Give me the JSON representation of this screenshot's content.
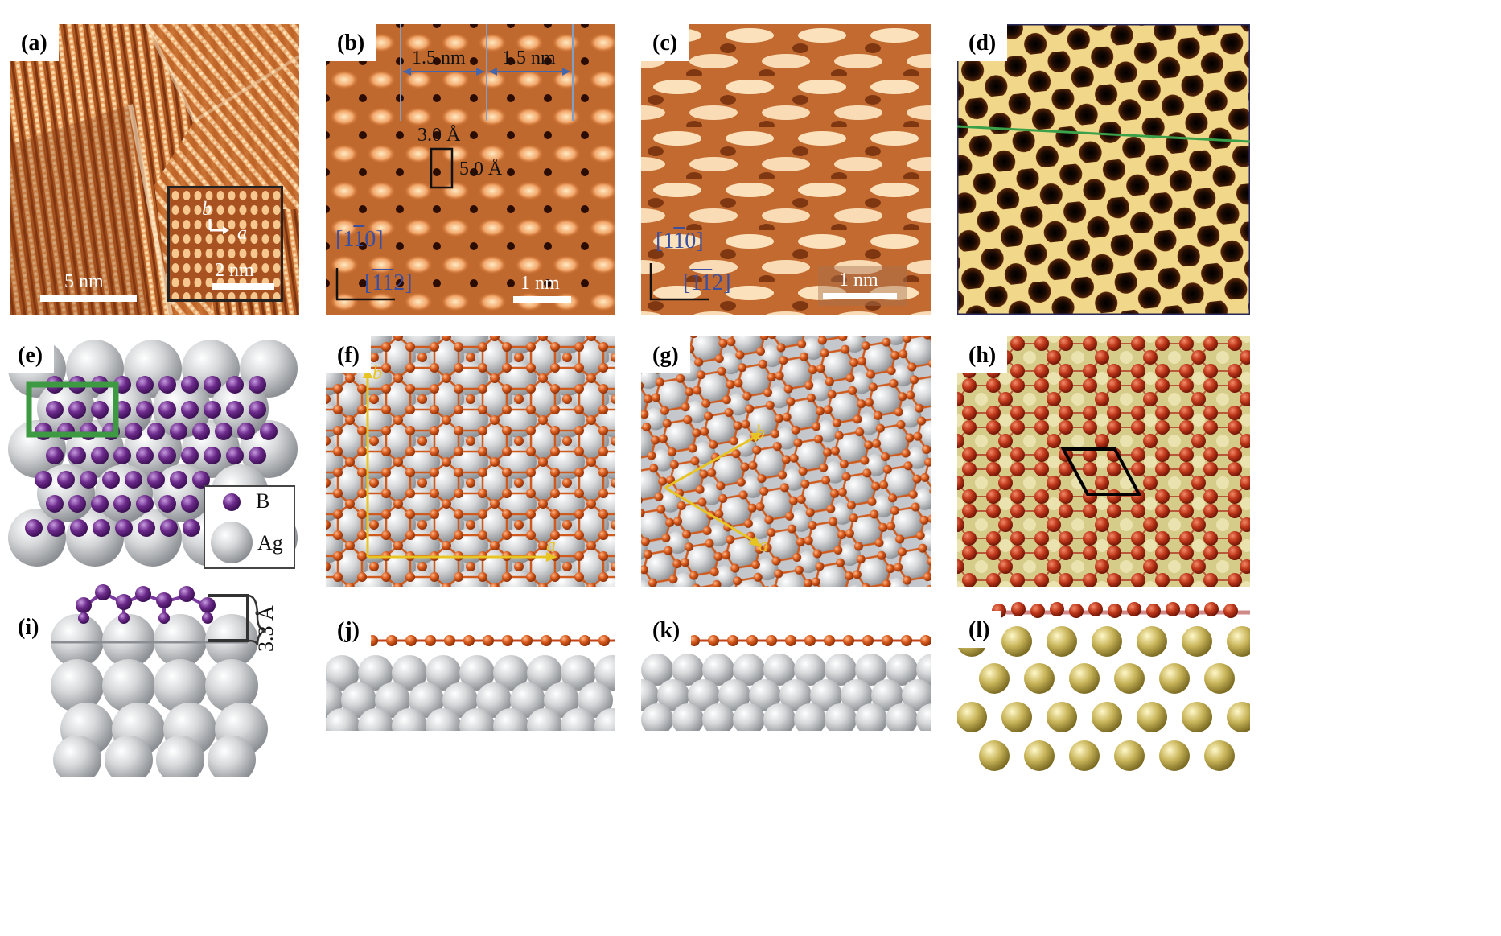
{
  "panels": {
    "a": {
      "label": "(a)",
      "scale": "5 nm",
      "inset_scale": "2 nm",
      "axis_b": "b",
      "axis_a": "a"
    },
    "b": {
      "label": "(b)",
      "dim1": "1.5 nm",
      "dim2": "1.5 nm",
      "cell_a": "3.0 Å",
      "cell_b": "5.0 Å",
      "dir1_pre": "[1",
      "dir1_bar": "1",
      "dir1_post": "0]",
      "dir2_pre": "[",
      "dir2_bar1": "1",
      "dir2_bar2": "1",
      "dir2_post": "2]",
      "scale": "1 nm"
    },
    "c": {
      "label": "(c)",
      "dir1_pre": "[1",
      "dir1_bar": "1",
      "dir1_post": "0]",
      "dir2_pre": "[",
      "dir2_bar1": "1",
      "dir2_bar2": "1",
      "dir2_post": "2]",
      "scale": "1 nm"
    },
    "d": {
      "label": "(d)"
    },
    "e": {
      "label": "(e)",
      "legend_b": "B",
      "legend_ag": "Ag"
    },
    "f": {
      "label": "(f)",
      "axis_a": "a",
      "axis_b": "b"
    },
    "g": {
      "label": "(g)",
      "axis_a": "a",
      "axis_b": "b"
    },
    "h": {
      "label": "(h)"
    },
    "i": {
      "label": "(i)",
      "height": "3.3 Å"
    },
    "j": {
      "label": "(j)"
    },
    "k": {
      "label": "(k)"
    },
    "l": {
      "label": "(l)"
    }
  },
  "colors": {
    "stm_dark": "#7a2e0a",
    "stm_bright": "#ffe6b8",
    "boron_orange": "#d2561b",
    "boron_purple": "#6a2a86",
    "silver": "#c9cbcd",
    "gold_substrate": "#c9bd6e",
    "green_box": "#3d9a43",
    "arrow_yellow": "#e8c423"
  }
}
